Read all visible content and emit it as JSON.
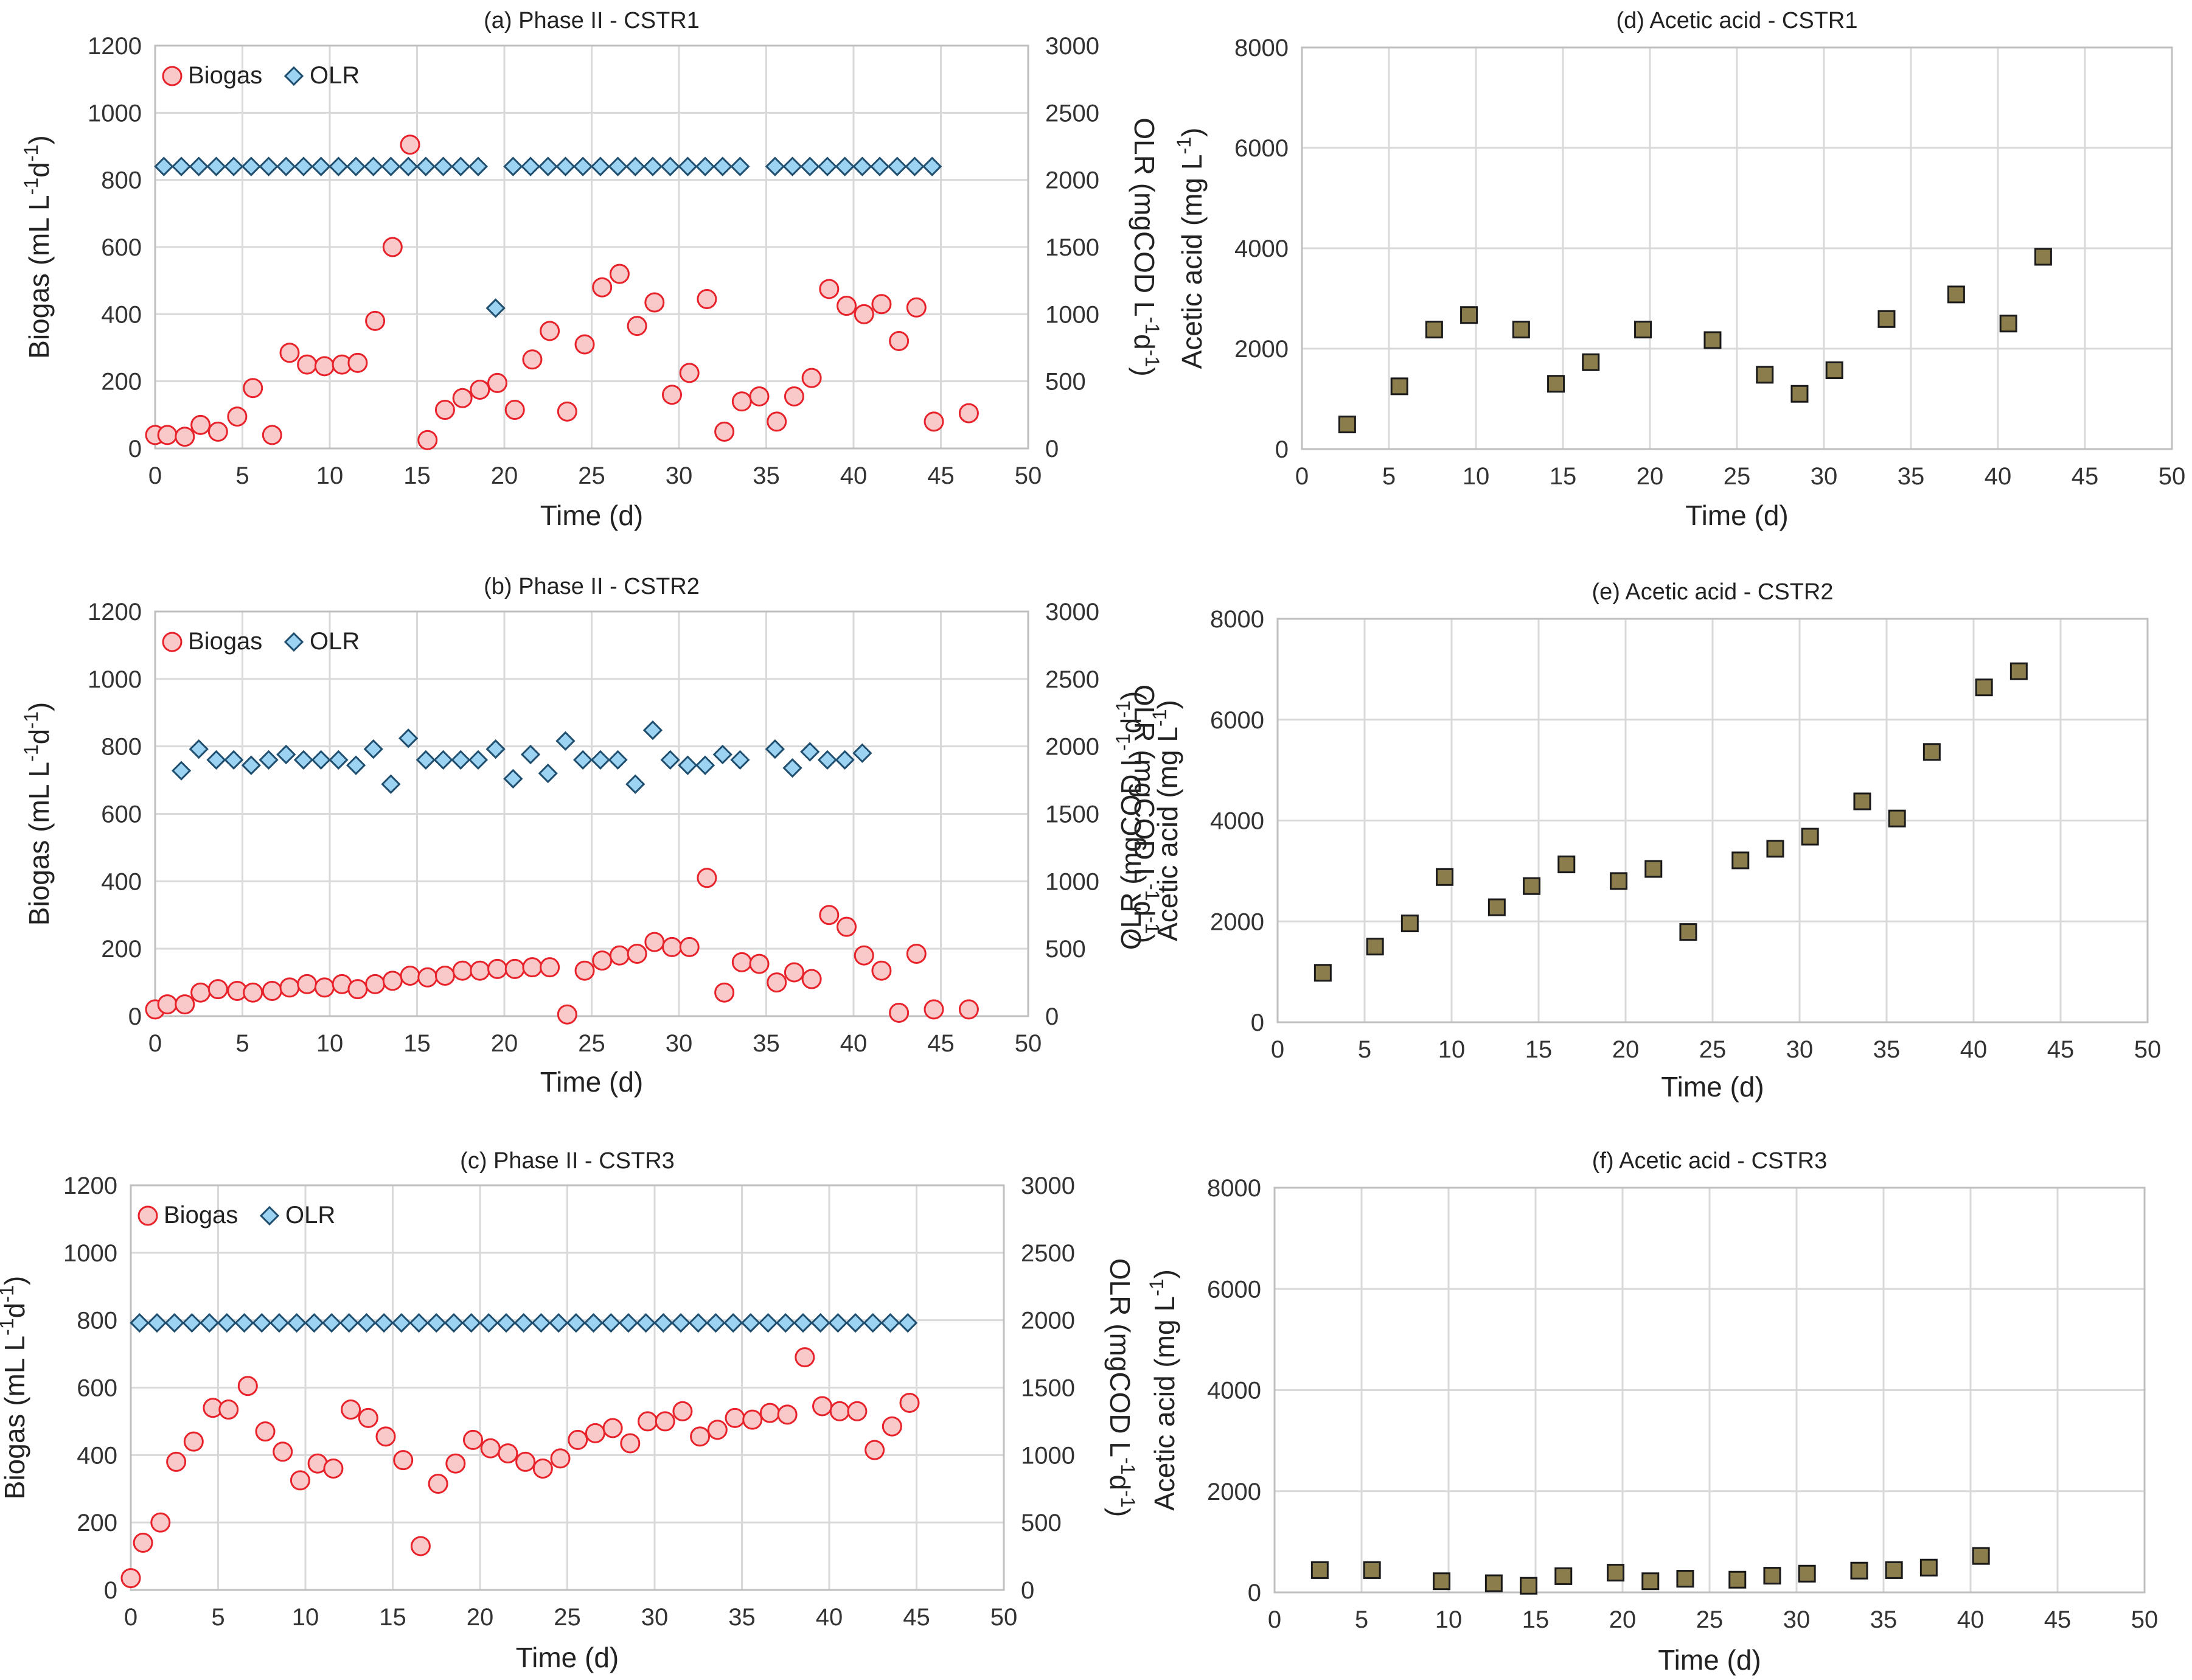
{
  "figure": {
    "caption_labels": [
      "(a)",
      "(b)",
      "(c)",
      "(d)",
      "(e)",
      "(f)"
    ]
  },
  "colors": {
    "biogas_fill": "#f9c8c8",
    "biogas_stroke": "#e8222a",
    "olr_fill": "#9dd3f2",
    "olr_stroke": "#1f4e6e",
    "acetic_fill": "#8c7d4c",
    "acetic_stroke": "#1a1a1a"
  },
  "chart_data": [
    {
      "id": "a",
      "type": "scatter",
      "title": "(a) Phase II - CSTR1",
      "xlabel": "Time (d)",
      "ylabel": "Biogas (mL L⁻¹d⁻¹)",
      "y2label": "OLR (mgCOD L⁻¹d⁻¹)",
      "xlim": [
        0,
        50
      ],
      "xticks": [
        0,
        5,
        10,
        15,
        20,
        25,
        30,
        35,
        40,
        45,
        50
      ],
      "ylim": [
        0,
        1200
      ],
      "yticks": [
        0,
        200,
        400,
        600,
        800,
        1000,
        1200
      ],
      "y2lim": [
        0,
        3000
      ],
      "y2ticks": [
        0,
        500,
        1000,
        1500,
        2000,
        2500,
        3000
      ],
      "legend": [
        "Biogas",
        "OLR"
      ],
      "series": [
        {
          "name": "Biogas",
          "axis": "left",
          "marker": "circle",
          "x": [
            0,
            0.7,
            1.7,
            2.6,
            3.6,
            4.7,
            5.6,
            6.7,
            7.7,
            8.7,
            9.7,
            10.7,
            11.6,
            12.6,
            13.6,
            14.6,
            15.6,
            16.6,
            17.6,
            18.6,
            19.6,
            20.6,
            21.6,
            22.6,
            23.6,
            24.6,
            25.6,
            26.6,
            27.6,
            28.6,
            29.6,
            30.6,
            31.6,
            32.6,
            33.6,
            34.6,
            35.6,
            36.6,
            37.6,
            38.6,
            39.6,
            40.6,
            41.6,
            42.6,
            43.6,
            44.6,
            46.6
          ],
          "y": [
            40,
            40,
            35,
            70,
            50,
            95,
            180,
            40,
            285,
            250,
            245,
            250,
            255,
            380,
            600,
            905,
            25,
            115,
            150,
            175,
            195,
            115,
            265,
            350,
            110,
            310,
            480,
            520,
            365,
            435,
            160,
            225,
            445,
            50,
            140,
            155,
            80,
            155,
            210,
            475,
            425,
            400,
            430,
            320,
            420,
            80,
            105
          ]
        },
        {
          "name": "OLR",
          "axis": "right",
          "marker": "diamond",
          "x": [
            0.5,
            1.5,
            2.5,
            3.5,
            4.5,
            5.5,
            6.5,
            7.5,
            8.5,
            9.5,
            10.5,
            11.5,
            12.5,
            13.5,
            14.5,
            15.5,
            16.5,
            17.5,
            18.5,
            19.5,
            20.5,
            21.5,
            22.5,
            23.5,
            24.5,
            25.5,
            26.5,
            27.5,
            28.5,
            29.5,
            30.5,
            31.5,
            32.5,
            33.5,
            35.5,
            36.5,
            37.5,
            38.5,
            39.5,
            40.5,
            41.5,
            42.5,
            43.5,
            44.5
          ],
          "y": [
            2100,
            2100,
            2100,
            2100,
            2100,
            2100,
            2100,
            2100,
            2100,
            2100,
            2100,
            2100,
            2100,
            2100,
            2100,
            2100,
            2100,
            2100,
            2100,
            1045,
            2100,
            2100,
            2100,
            2100,
            2100,
            2100,
            2100,
            2100,
            2100,
            2100,
            2100,
            2100,
            2100,
            2100,
            2100,
            2100,
            2100,
            2100,
            2100,
            2100,
            2100,
            2100,
            2100,
            2100
          ]
        }
      ]
    },
    {
      "id": "b",
      "type": "scatter",
      "title": "(b) Phase II - CSTR2",
      "xlabel": "Time (d)",
      "ylabel": "Biogas (mL L⁻¹d⁻¹)",
      "y2label": "OLR (mgCOD L⁻¹d⁻¹)",
      "xlim": [
        0,
        50
      ],
      "xticks": [
        0,
        5,
        10,
        15,
        20,
        25,
        30,
        35,
        40,
        45,
        50
      ],
      "ylim": [
        0,
        1200
      ],
      "yticks": [
        0,
        200,
        400,
        600,
        800,
        1000,
        1200
      ],
      "y2lim": [
        0,
        3000
      ],
      "y2ticks": [
        0,
        500,
        1000,
        1500,
        2000,
        2500,
        3000
      ],
      "legend": [
        "Biogas",
        "OLR"
      ],
      "series": [
        {
          "name": "Biogas",
          "axis": "left",
          "marker": "circle",
          "x": [
            0,
            0.7,
            1.7,
            2.6,
            3.6,
            4.7,
            5.6,
            6.7,
            7.7,
            8.7,
            9.7,
            10.7,
            11.6,
            12.6,
            13.6,
            14.6,
            15.6,
            16.6,
            17.6,
            18.6,
            19.6,
            20.6,
            21.6,
            22.6,
            23.6,
            24.6,
            25.6,
            26.6,
            27.6,
            28.6,
            29.6,
            30.6,
            31.6,
            32.6,
            33.6,
            34.6,
            35.6,
            36.6,
            37.6,
            38.6,
            39.6,
            40.6,
            41.6,
            42.6,
            43.6,
            44.6,
            46.6
          ],
          "y": [
            20,
            35,
            35,
            70,
            80,
            75,
            70,
            75,
            85,
            95,
            85,
            95,
            80,
            95,
            105,
            120,
            115,
            120,
            135,
            135,
            140,
            140,
            145,
            145,
            5,
            135,
            165,
            180,
            185,
            220,
            205,
            205,
            410,
            70,
            160,
            155,
            100,
            130,
            110,
            300,
            265,
            180,
            135,
            10,
            185,
            20,
            20
          ]
        },
        {
          "name": "OLR",
          "axis": "right",
          "marker": "diamond",
          "x": [
            1.5,
            2.5,
            3.5,
            4.5,
            5.5,
            6.5,
            7.5,
            8.5,
            9.5,
            10.5,
            11.5,
            12.5,
            13.5,
            14.5,
            15.5,
            16.5,
            17.5,
            18.5,
            19.5,
            20.5,
            21.5,
            22.5,
            23.5,
            24.5,
            25.5,
            26.5,
            27.5,
            28.5,
            29.5,
            30.5,
            31.5,
            32.5,
            33.5,
            35.5,
            36.5,
            37.5,
            38.5,
            39.5,
            40.5
          ],
          "y": [
            1820,
            1980,
            1900,
            1900,
            1860,
            1900,
            1940,
            1900,
            1900,
            1900,
            1860,
            1980,
            1720,
            2060,
            1900,
            1900,
            1900,
            1900,
            1980,
            1760,
            1940,
            1800,
            2040,
            1900,
            1900,
            1900,
            1720,
            2120,
            1900,
            1860,
            1860,
            1940,
            1900,
            1980,
            1840,
            1960,
            1900,
            1900,
            1950
          ]
        }
      ]
    },
    {
      "id": "c",
      "type": "scatter",
      "title": "(c) Phase II - CSTR3",
      "xlabel": "Time (d)",
      "ylabel": "Biogas (mL L⁻¹d⁻¹)",
      "y2label": "OLR (mgCOD L⁻¹d⁻¹)",
      "xlim": [
        0,
        50
      ],
      "xticks": [
        0,
        5,
        10,
        15,
        20,
        25,
        30,
        35,
        40,
        45,
        50
      ],
      "ylim": [
        0,
        1200
      ],
      "yticks": [
        0,
        200,
        400,
        600,
        800,
        1000,
        1200
      ],
      "y2lim": [
        0,
        3000
      ],
      "y2ticks": [
        0,
        500,
        1000,
        1500,
        2000,
        2500,
        3000
      ],
      "legend": [
        "Biogas",
        "OLR"
      ],
      "series": [
        {
          "name": "Biogas",
          "axis": "left",
          "marker": "circle",
          "x": [
            0,
            0.7,
            1.7,
            2.6,
            3.6,
            4.7,
            5.6,
            6.7,
            7.7,
            8.7,
            9.7,
            10.7,
            11.6,
            12.6,
            13.6,
            14.6,
            15.6,
            16.6,
            17.6,
            18.6,
            19.6,
            20.6,
            21.6,
            22.6,
            23.6,
            24.6,
            25.6,
            26.6,
            27.6,
            28.6,
            29.6,
            30.6,
            31.6,
            32.6,
            33.6,
            34.6,
            35.6,
            36.6,
            37.6,
            38.6,
            39.6,
            40.6,
            41.6,
            42.6,
            43.6,
            44.6
          ],
          "y": [
            35,
            140,
            200,
            380,
            440,
            540,
            535,
            605,
            470,
            410,
            325,
            375,
            360,
            535,
            510,
            455,
            385,
            130,
            315,
            375,
            445,
            420,
            405,
            380,
            360,
            390,
            445,
            465,
            480,
            435,
            500,
            500,
            530,
            455,
            475,
            510,
            505,
            525,
            520,
            690,
            545,
            530,
            530,
            415,
            485,
            555
          ]
        },
        {
          "name": "OLR",
          "axis": "right",
          "marker": "diamond",
          "x": [
            0.5,
            1.5,
            2.5,
            3.5,
            4.5,
            5.5,
            6.5,
            7.5,
            8.5,
            9.5,
            10.5,
            11.5,
            12.5,
            13.5,
            14.5,
            15.5,
            16.5,
            17.5,
            18.5,
            19.5,
            20.5,
            21.5,
            22.5,
            23.5,
            24.5,
            25.5,
            26.5,
            27.5,
            28.5,
            29.5,
            30.5,
            31.5,
            32.5,
            33.5,
            34.5,
            35.5,
            36.5,
            37.5,
            38.5,
            39.5,
            40.5,
            41.5,
            42.5,
            43.5,
            44.5
          ],
          "y": [
            1980,
            1980,
            1980,
            1980,
            1980,
            1980,
            1980,
            1980,
            1980,
            1980,
            1980,
            1980,
            1980,
            1980,
            1980,
            1980,
            1980,
            1980,
            1980,
            1980,
            1980,
            1980,
            1980,
            1980,
            1980,
            1980,
            1980,
            1980,
            1980,
            1980,
            1980,
            1980,
            1980,
            1980,
            1980,
            1980,
            1980,
            1980,
            1980,
            1980,
            1980,
            1980,
            1980,
            1980,
            1980
          ]
        }
      ]
    },
    {
      "id": "d",
      "type": "scatter",
      "title": "(d) Acetic acid - CSTR1",
      "xlabel": "Time (d)",
      "ylabel": "Acetic acid (mg L⁻¹)",
      "xlim": [
        0,
        50
      ],
      "xticks": [
        0,
        5,
        10,
        15,
        20,
        25,
        30,
        35,
        40,
        45,
        50
      ],
      "ylim": [
        0,
        8000
      ],
      "yticks": [
        0,
        2000,
        4000,
        6000,
        8000
      ],
      "series": [
        {
          "name": "Acetic acid",
          "axis": "left",
          "marker": "square",
          "x": [
            2.6,
            5.6,
            7.6,
            9.6,
            12.6,
            14.6,
            16.6,
            19.6,
            23.6,
            26.6,
            28.6,
            30.6,
            33.6,
            37.6,
            40.6,
            42.6
          ],
          "y": [
            490,
            1250,
            2380,
            2670,
            2380,
            1300,
            1730,
            2380,
            2170,
            1480,
            1100,
            1570,
            2590,
            3080,
            2500,
            3830
          ]
        }
      ]
    },
    {
      "id": "e",
      "type": "scatter",
      "title": "(e) Acetic acid - CSTR2",
      "xlabel": "Time (d)",
      "ylabel": "Acetic acid (mg L⁻¹)",
      "ylabel_overlay": "OLR (mgCOD L⁻¹d⁻¹)",
      "xlim": [
        0,
        50
      ],
      "xticks": [
        0,
        5,
        10,
        15,
        20,
        25,
        30,
        35,
        40,
        45,
        50
      ],
      "ylim": [
        0,
        8000
      ],
      "yticks": [
        0,
        2000,
        4000,
        6000,
        8000
      ],
      "series": [
        {
          "name": "Acetic acid",
          "axis": "left",
          "marker": "square",
          "x": [
            2.6,
            5.6,
            7.6,
            9.6,
            12.6,
            14.6,
            16.6,
            19.6,
            21.6,
            23.6,
            26.6,
            28.6,
            30.6,
            33.6,
            35.6,
            37.6,
            40.6,
            42.6
          ],
          "y": [
            980,
            1500,
            1960,
            2880,
            2280,
            2700,
            3130,
            2800,
            3040,
            1790,
            3210,
            3440,
            3680,
            4380,
            4040,
            5360,
            6640,
            6960
          ]
        }
      ]
    },
    {
      "id": "f",
      "type": "scatter",
      "title": "(f) Acetic acid - CSTR3",
      "xlabel": "Time (d)",
      "ylabel": "Acetic acid (mg L⁻¹)",
      "xlim": [
        0,
        50
      ],
      "xticks": [
        0,
        5,
        10,
        15,
        20,
        25,
        30,
        35,
        40,
        45,
        50
      ],
      "ylim": [
        0,
        8000
      ],
      "yticks": [
        0,
        2000,
        4000,
        6000,
        8000
      ],
      "series": [
        {
          "name": "Acetic acid",
          "axis": "left",
          "marker": "square",
          "x": [
            2.6,
            5.6,
            9.6,
            12.6,
            14.6,
            16.6,
            19.6,
            21.6,
            23.6,
            26.6,
            28.6,
            30.6,
            33.6,
            35.6,
            37.6,
            40.6
          ],
          "y": [
            440,
            440,
            220,
            180,
            130,
            320,
            390,
            220,
            270,
            250,
            330,
            370,
            430,
            440,
            490,
            720
          ]
        }
      ]
    }
  ]
}
